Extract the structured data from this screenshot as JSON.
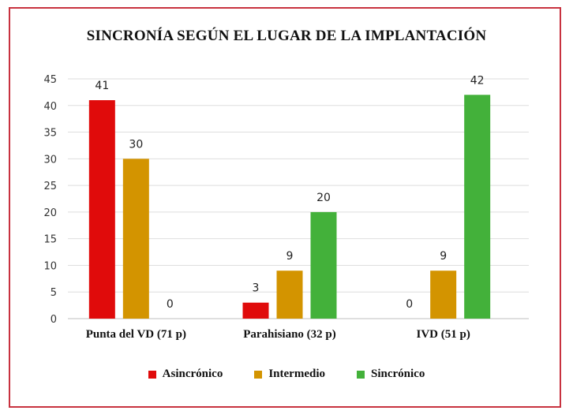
{
  "chart_data": {
    "type": "bar",
    "title": "SINCRONÍA SEGÚN EL LUGAR DE LA IMPLANTACIÓN",
    "categories": [
      "Punta del VD (71 p)",
      "Parahisiano (32 p)",
      "IVD (51 p)"
    ],
    "series": [
      {
        "name": "Asincrónico",
        "color": "#e00b0b",
        "values": [
          41,
          3,
          0
        ]
      },
      {
        "name": "Intermedio",
        "color": "#d39400",
        "values": [
          30,
          9,
          9
        ]
      },
      {
        "name": "Sincrónico",
        "color": "#43b13a",
        "values": [
          0,
          20,
          42
        ]
      }
    ],
    "ylim": [
      0,
      45
    ],
    "yticks": [
      0,
      5,
      10,
      15,
      20,
      25,
      30,
      35,
      40,
      45
    ],
    "grid": true,
    "legend": "bottom"
  }
}
